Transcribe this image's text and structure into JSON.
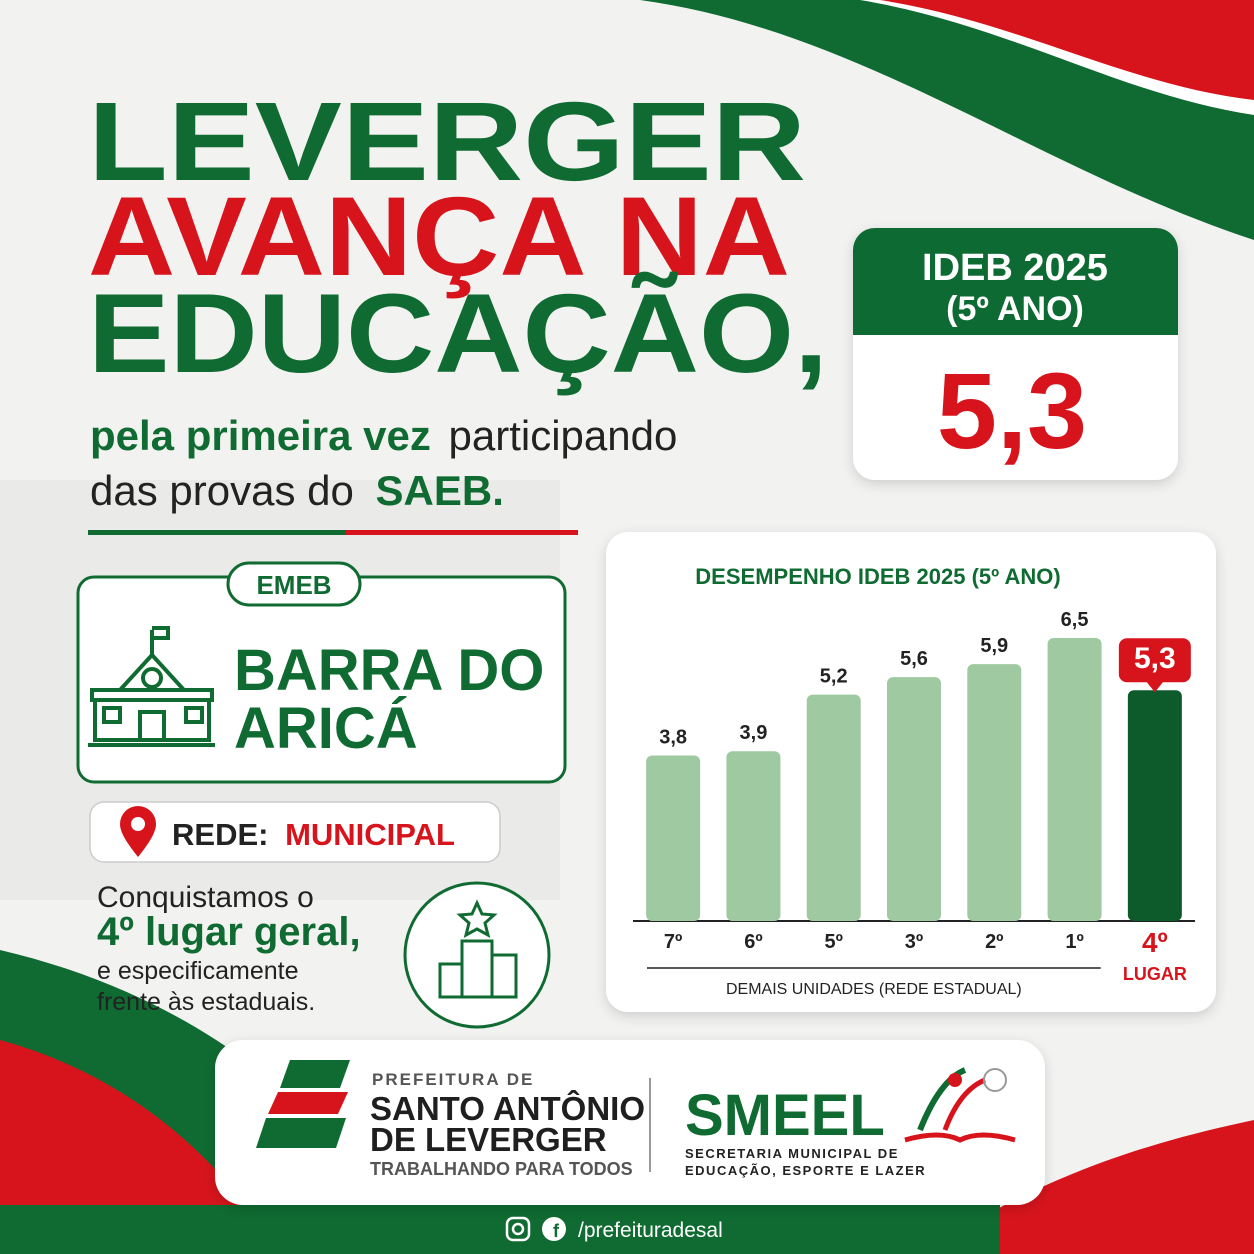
{
  "headline": {
    "line1": "LEVERGER",
    "line2": "AVANÇA NA",
    "line3": "EDUCAÇÃO,"
  },
  "subtitle": {
    "bold1": "pela primeira vez",
    "rest1": "participando",
    "rest2": "das provas do",
    "bold2": "SAEB."
  },
  "ideb_card": {
    "title": "IDEB 2025",
    "subtitle": "(5º ANO)",
    "score": "5,3"
  },
  "school_card": {
    "tag": "EMEB",
    "name1": "BARRA DO",
    "name2": "ARICÁ"
  },
  "network": {
    "label": "REDE:",
    "value": "MUNICIPAL"
  },
  "achievement": {
    "line1": "Conquistamos o",
    "line2": "4º lugar geral,",
    "line3": "e especificamente",
    "line4": "frente às estaduais."
  },
  "footer": {
    "pref_small": "PREFEITURA DE",
    "pref_name1": "SANTO ANTÔNIO",
    "pref_name2": "DE LEVERGER",
    "pref_slogan": "TRABALHANDO PARA TODOS",
    "smeel": "SMEEL",
    "smeel_sub1": "SECRETARIA MUNICIPAL DE",
    "smeel_sub2": "EDUCAÇÃO, ESPORTE E LAZER",
    "social": "/prefeituradesal"
  },
  "chart_data": {
    "type": "bar",
    "title": "DESEMPENHO IDEB 2025 (5º ANO)",
    "categories": [
      "7º",
      "6º",
      "5º",
      "3º",
      "2º",
      "1º",
      "4º"
    ],
    "values": [
      3.8,
      3.9,
      5.2,
      5.6,
      5.9,
      6.5,
      5.3
    ],
    "value_labels": [
      "3,8",
      "3,9",
      "5,2",
      "5,6",
      "5,9",
      "6,5",
      "5,3"
    ],
    "colors": [
      "#9fc9a0",
      "#9fc9a0",
      "#9fc9a0",
      "#9fc9a0",
      "#9fc9a0",
      "#9fc9a0",
      "#0d5a2a"
    ],
    "highlight_category": "4º",
    "highlight_color": "#d7141c",
    "category_note": "LUGAR",
    "group_label": "DEMAIS UNIDADES (REDE ESTADUAL)"
  }
}
